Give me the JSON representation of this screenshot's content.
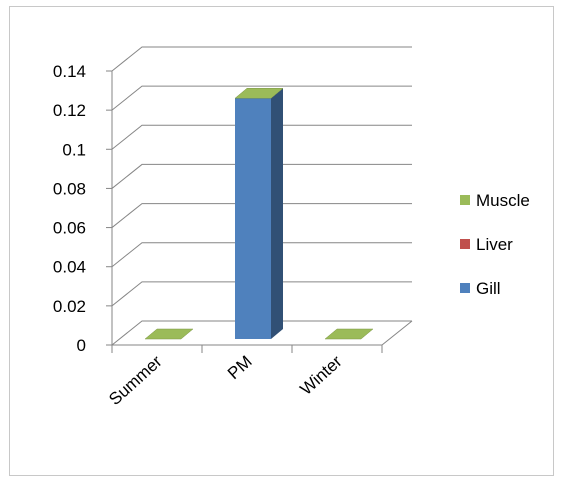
{
  "chart_data": {
    "type": "bar",
    "subtype": "3d-clustered-stacked",
    "title": "",
    "xlabel": "",
    "ylabel": "",
    "categories": [
      "Summer",
      "PM",
      "Winter"
    ],
    "series": [
      {
        "name": "Muscle",
        "values": [
          0,
          0,
          0
        ],
        "color": "#9bbb59"
      },
      {
        "name": "Liver",
        "values": [
          0,
          0,
          0
        ],
        "color": "#c0504d"
      },
      {
        "name": "Gill",
        "values": [
          0,
          0.123,
          0
        ],
        "color": "#4f81bd"
      }
    ],
    "ylim": [
      0,
      0.14
    ],
    "yticks": [
      "0",
      "0.02",
      "0.04",
      "0.06",
      "0.08",
      "0.1",
      "0.12",
      "0.14"
    ],
    "ytick_values": [
      0,
      0.02,
      0.04,
      0.06,
      0.08,
      0.1,
      0.12,
      0.14
    ],
    "grid": true,
    "legend_position": "right"
  }
}
